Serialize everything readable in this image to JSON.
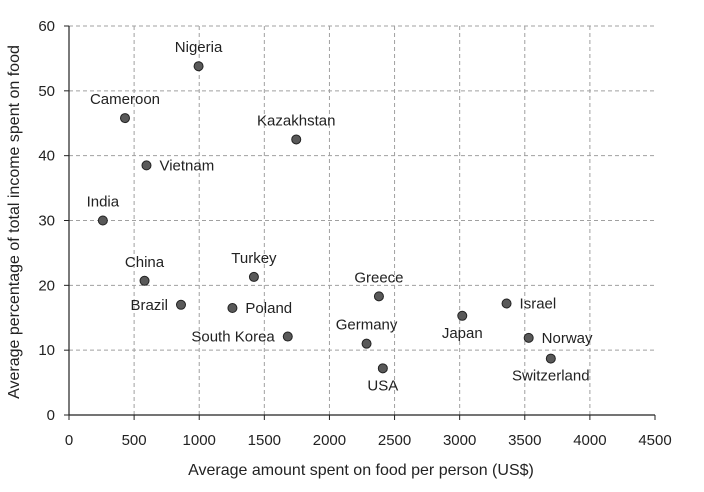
{
  "chart_data": {
    "type": "scatter",
    "xlabel": "Average amount spent on food per person (US$)",
    "ylabel": "Average percentage of total income spent on food",
    "xlim": [
      0,
      4500
    ],
    "ylim": [
      0,
      60
    ],
    "xticks": [
      "0",
      "500",
      "1000",
      "1500",
      "2000",
      "2500",
      "3000",
      "3500",
      "4000",
      "4500"
    ],
    "yticks": [
      "0",
      "10",
      "20",
      "30",
      "40",
      "50",
      "60"
    ],
    "grid": true,
    "colors": {
      "marker": "#595959",
      "marker_edge": "#222222",
      "grid": "#a0a0a0",
      "axis": "#222222"
    },
    "points": [
      {
        "label": "Nigeria",
        "x": 995,
        "y": 53.8,
        "label_pos": "above"
      },
      {
        "label": "Cameroon",
        "x": 430,
        "y": 45.8,
        "label_pos": "above"
      },
      {
        "label": "Kazakhstan",
        "x": 1745,
        "y": 42.5,
        "label_pos": "above"
      },
      {
        "label": "Vietnam",
        "x": 595,
        "y": 38.5,
        "label_pos": "right"
      },
      {
        "label": "India",
        "x": 260,
        "y": 30.0,
        "label_pos": "above"
      },
      {
        "label": "Turkey",
        "x": 1420,
        "y": 21.3,
        "label_pos": "above"
      },
      {
        "label": "China",
        "x": 580,
        "y": 20.7,
        "label_pos": "above"
      },
      {
        "label": "Greece",
        "x": 2380,
        "y": 18.3,
        "label_pos": "above"
      },
      {
        "label": "Brazil",
        "x": 860,
        "y": 17.0,
        "label_pos": "left"
      },
      {
        "label": "Israel",
        "x": 3360,
        "y": 17.2,
        "label_pos": "right"
      },
      {
        "label": "Poland",
        "x": 1255,
        "y": 16.5,
        "label_pos": "right"
      },
      {
        "label": "Japan",
        "x": 3020,
        "y": 15.3,
        "label_pos": "below"
      },
      {
        "label": "South Korea",
        "x": 1680,
        "y": 12.1,
        "label_pos": "left"
      },
      {
        "label": "Norway",
        "x": 3530,
        "y": 11.9,
        "label_pos": "right"
      },
      {
        "label": "Germany",
        "x": 2285,
        "y": 11.0,
        "label_pos": "above"
      },
      {
        "label": "Switzerland",
        "x": 3700,
        "y": 8.7,
        "label_pos": "below"
      },
      {
        "label": "USA",
        "x": 2410,
        "y": 7.2,
        "label_pos": "below"
      }
    ]
  }
}
